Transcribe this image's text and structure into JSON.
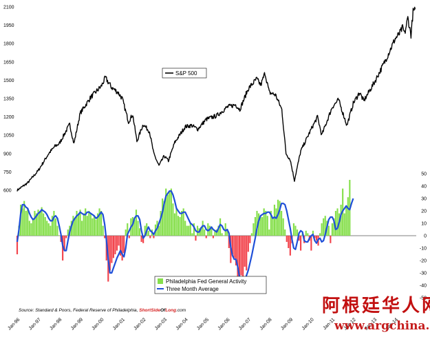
{
  "chart_data": {
    "type": "combo",
    "title": "",
    "series": [
      {
        "name": "S&P 500",
        "kind": "line",
        "axis": "left",
        "color": "#000000",
        "points": [
          [
            1996.0,
            600
          ],
          [
            1996.5,
            660
          ],
          [
            1997.0,
            760
          ],
          [
            1997.5,
            900
          ],
          [
            1997.8,
            960
          ],
          [
            1998.0,
            980
          ],
          [
            1998.5,
            1140
          ],
          [
            1998.7,
            980
          ],
          [
            1999.0,
            1230
          ],
          [
            1999.5,
            1360
          ],
          [
            2000.0,
            1450
          ],
          [
            2000.2,
            1520
          ],
          [
            2000.5,
            1440
          ],
          [
            2000.8,
            1400
          ],
          [
            2001.0,
            1350
          ],
          [
            2001.3,
            1160
          ],
          [
            2001.5,
            1220
          ],
          [
            2001.7,
            1000
          ],
          [
            2002.0,
            1140
          ],
          [
            2002.3,
            1080
          ],
          [
            2002.5,
            900
          ],
          [
            2002.75,
            800
          ],
          [
            2003.0,
            880
          ],
          [
            2003.2,
            840
          ],
          [
            2003.5,
            990
          ],
          [
            2004.0,
            1120
          ],
          [
            2004.3,
            1130
          ],
          [
            2004.6,
            1100
          ],
          [
            2005.0,
            1180
          ],
          [
            2005.5,
            1210
          ],
          [
            2006.0,
            1280
          ],
          [
            2006.4,
            1300
          ],
          [
            2006.6,
            1260
          ],
          [
            2007.0,
            1430
          ],
          [
            2007.4,
            1510
          ],
          [
            2007.6,
            1460
          ],
          [
            2007.8,
            1560
          ],
          [
            2008.0,
            1400
          ],
          [
            2008.3,
            1380
          ],
          [
            2008.6,
            1260
          ],
          [
            2008.8,
            900
          ],
          [
            2009.0,
            850
          ],
          [
            2009.2,
            680
          ],
          [
            2009.5,
            920
          ],
          [
            2010.0,
            1100
          ],
          [
            2010.3,
            1200
          ],
          [
            2010.5,
            1050
          ],
          [
            2011.0,
            1280
          ],
          [
            2011.3,
            1340
          ],
          [
            2011.7,
            1130
          ],
          [
            2012.0,
            1310
          ],
          [
            2012.3,
            1400
          ],
          [
            2012.5,
            1330
          ],
          [
            2013.0,
            1480
          ],
          [
            2013.5,
            1650
          ],
          [
            2014.0,
            1840
          ],
          [
            2014.2,
            1880
          ],
          [
            2014.35,
            1930
          ],
          [
            2014.45,
            1880
          ],
          [
            2014.6,
            2010
          ],
          [
            2014.75,
            1870
          ],
          [
            2014.85,
            2060
          ],
          [
            2014.95,
            2080
          ]
        ]
      },
      {
        "name": "Philadelphia Fed General Activity",
        "kind": "bar",
        "axis": "right",
        "color": "#86df4c",
        "negative_color": "#f2444c",
        "start": 1996.0,
        "step": 0.0833333333,
        "values": [
          -15,
          8,
          25,
          22,
          28,
          20,
          22,
          12,
          10,
          14,
          20,
          18,
          21,
          20,
          23,
          18,
          15,
          12,
          10,
          8,
          16,
          20,
          14,
          8,
          0,
          -5,
          -20,
          -12,
          -2,
          5,
          8,
          12,
          16,
          14,
          20,
          18,
          21,
          12,
          18,
          22,
          16,
          20,
          18,
          14,
          16,
          13,
          18,
          22,
          20,
          8,
          -2,
          -20,
          -37,
          -28,
          -22,
          -18,
          -15,
          -12,
          -8,
          -16,
          -20,
          -14,
          5,
          10,
          -2,
          14,
          15,
          13,
          21,
          12,
          6,
          -5,
          -6,
          8,
          10,
          4,
          -2,
          5,
          -2,
          9,
          12,
          8,
          20,
          30,
          28,
          38,
          33,
          36,
          38,
          26,
          18,
          22,
          16,
          15,
          20,
          22,
          12,
          8,
          8,
          10,
          2,
          10,
          -4,
          8,
          6,
          7,
          12,
          5,
          -2,
          10,
          8,
          7,
          -2,
          4,
          5,
          8,
          14,
          2,
          0,
          10,
          5,
          -10,
          -22,
          -15,
          -18,
          -24,
          -33,
          -41,
          -32,
          -40,
          -25,
          -28,
          -13,
          -6,
          2,
          10,
          15,
          20,
          18,
          16,
          15,
          22,
          20,
          16,
          5,
          20,
          15,
          25,
          22,
          29,
          28,
          20,
          14,
          5,
          -5,
          -10,
          -16,
          -6,
          10,
          8,
          5,
          -4,
          -12,
          2,
          -6,
          4,
          2,
          -4,
          -12,
          4,
          -2,
          -4,
          -8,
          2,
          10,
          14,
          16,
          12,
          8,
          -6,
          10,
          14,
          20,
          22,
          18,
          25,
          38,
          18,
          23,
          31,
          45
        ]
      },
      {
        "name": "Three Month Average",
        "kind": "line",
        "axis": "right",
        "color": "#1f4fd8",
        "start": 1996.0,
        "step": 0.0833333333,
        "values": [
          -5,
          5,
          18,
          25,
          25,
          23,
          22,
          18,
          15,
          13,
          14,
          16,
          18,
          19,
          21,
          20,
          19,
          17,
          14,
          12,
          12,
          15,
          16,
          14,
          8,
          1,
          -8,
          -12,
          -12,
          -4,
          3,
          8,
          12,
          14,
          16,
          17,
          19,
          18,
          17,
          17,
          19,
          19,
          18,
          17,
          16,
          14,
          15,
          17,
          19,
          17,
          9,
          -4,
          -19,
          -30,
          -30,
          -26,
          -22,
          -18,
          -15,
          -12,
          -15,
          -17,
          -10,
          1,
          4,
          7,
          9,
          14,
          16,
          16,
          13,
          4,
          -2,
          0,
          4,
          7,
          4,
          3,
          1,
          4,
          6,
          10,
          14,
          19,
          26,
          32,
          34,
          36,
          36,
          33,
          28,
          22,
          20,
          18,
          18,
          19,
          19,
          16,
          13,
          10,
          9,
          7,
          4,
          3,
          3,
          6,
          8,
          8,
          5,
          4,
          5,
          7,
          5,
          4,
          3,
          6,
          9,
          8,
          5,
          4,
          5,
          2,
          -9,
          -16,
          -19,
          -19,
          -25,
          -33,
          -38,
          -38,
          -38,
          -32,
          -28,
          -22,
          -16,
          -9,
          -2,
          6,
          12,
          16,
          17,
          18,
          18,
          19,
          19,
          17,
          14,
          15,
          14,
          17,
          21,
          26,
          26,
          25,
          20,
          13,
          6,
          -3,
          -10,
          -11,
          -5,
          2,
          4,
          3,
          -4,
          -5,
          -5,
          -2,
          0,
          1,
          -4,
          -6,
          -3,
          -2,
          -5,
          -4,
          1,
          7,
          13,
          15,
          15,
          12,
          5,
          6,
          11,
          17,
          20,
          22,
          24,
          22,
          21,
          26,
          30
        ]
      }
    ],
    "left_axis": {
      "ticks": [
        600,
        750,
        900,
        1050,
        1200,
        1350,
        1500,
        1650,
        1800,
        1950,
        2100
      ],
      "ylim": [
        600,
        2100
      ]
    },
    "right_axis": {
      "ticks": [
        -50,
        -40,
        -30,
        -20,
        -10,
        0,
        10,
        20,
        30,
        40,
        50
      ],
      "ylim": [
        -50,
        50
      ]
    },
    "x_ticks": [
      "Jan-96",
      "Jan-97",
      "Jan-98",
      "Jan-99",
      "Jan-00",
      "Jan-01",
      "Jan-02",
      "Jan-03",
      "Jan-04",
      "Jan-05",
      "Jan-06",
      "Jan-07",
      "Jan-08",
      "Jan-09",
      "Jan-10",
      "Jan-11",
      "Jan-12",
      "Jan-13",
      "Jan-14"
    ],
    "xlim": [
      1996.0,
      2015.0
    ],
    "legend_top": {
      "label": "S&P 500"
    },
    "legend_bottom": [
      {
        "label": "Philadelphia Fed General Activity",
        "color": "#86df4c",
        "type": "bar"
      },
      {
        "label": "Three Month Average",
        "color": "#1f4fd8",
        "type": "line"
      }
    ]
  },
  "source": {
    "prefix": "Source: Standard & Poors, Federal Reserve of Philadelphia, ",
    "site_a": "ShortSide",
    "site_b": "Of",
    "site_c": "Long",
    "site_d": ".com"
  },
  "watermark": {
    "cn": "阿根廷华人网",
    "url": "www.argchina.com"
  }
}
